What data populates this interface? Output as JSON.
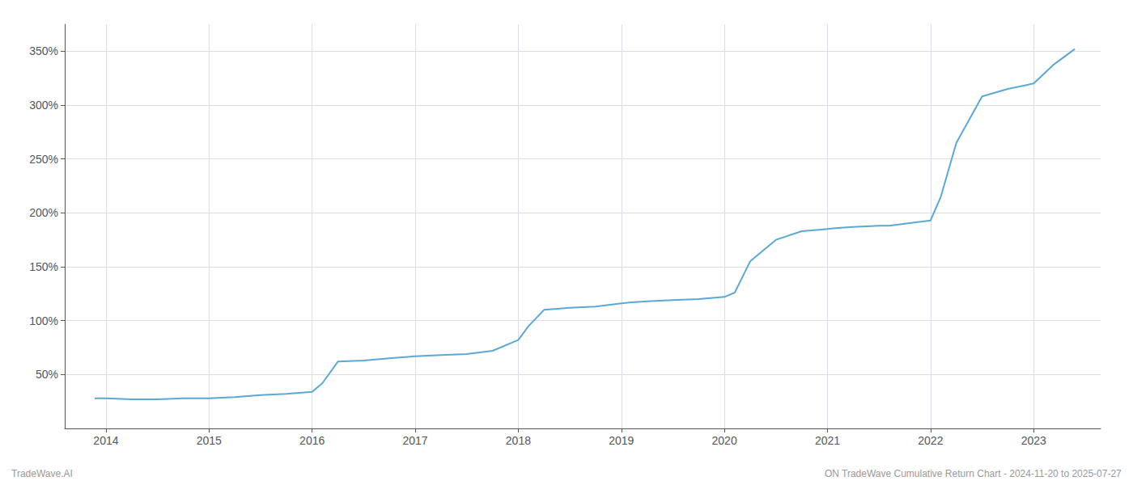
{
  "chart_data": {
    "type": "line",
    "x": [
      2013.89,
      2014.0,
      2014.25,
      2014.5,
      2014.75,
      2015.0,
      2015.25,
      2015.5,
      2015.75,
      2016.0,
      2016.1,
      2016.25,
      2016.5,
      2016.75,
      2017.0,
      2017.25,
      2017.5,
      2017.75,
      2018.0,
      2018.1,
      2018.25,
      2018.5,
      2018.75,
      2019.0,
      2019.1,
      2019.25,
      2019.5,
      2019.75,
      2020.0,
      2020.1,
      2020.25,
      2020.5,
      2020.75,
      2021.0,
      2021.1,
      2021.25,
      2021.5,
      2021.6,
      2021.75,
      2022.0,
      2022.1,
      2022.25,
      2022.5,
      2022.75,
      2023.0,
      2023.2,
      2023.4
    ],
    "values": [
      28,
      28,
      27,
      27,
      28,
      28,
      29,
      31,
      32,
      34,
      42,
      62,
      63,
      65,
      67,
      68,
      69,
      72,
      82,
      95,
      110,
      112,
      113,
      116,
      117,
      118,
      119,
      120,
      122,
      126,
      155,
      175,
      183,
      185,
      186,
      187,
      188,
      188,
      190,
      193,
      215,
      265,
      308,
      315,
      320,
      338,
      352
    ],
    "color": "#5ba8d4",
    "xlim": [
      2013.6,
      2023.65
    ],
    "xticks": [
      2014,
      2015,
      2016,
      2017,
      2018,
      2019,
      2020,
      2021,
      2022,
      2023
    ],
    "ylim": [
      0,
      375
    ],
    "yticks": [
      {
        "value": 50,
        "label": "50%"
      },
      {
        "value": 100,
        "label": "100%"
      },
      {
        "value": 150,
        "label": "150%"
      },
      {
        "value": 200,
        "label": "200%"
      },
      {
        "value": 250,
        "label": "250%"
      },
      {
        "value": 300,
        "label": "300%"
      },
      {
        "value": 350,
        "label": "350%"
      }
    ],
    "grid": true,
    "annotations": [
      "TradeWave.AI",
      "ON TradeWave Cumulative Return Chart - 2024-11-20 to 2025-07-27"
    ]
  }
}
